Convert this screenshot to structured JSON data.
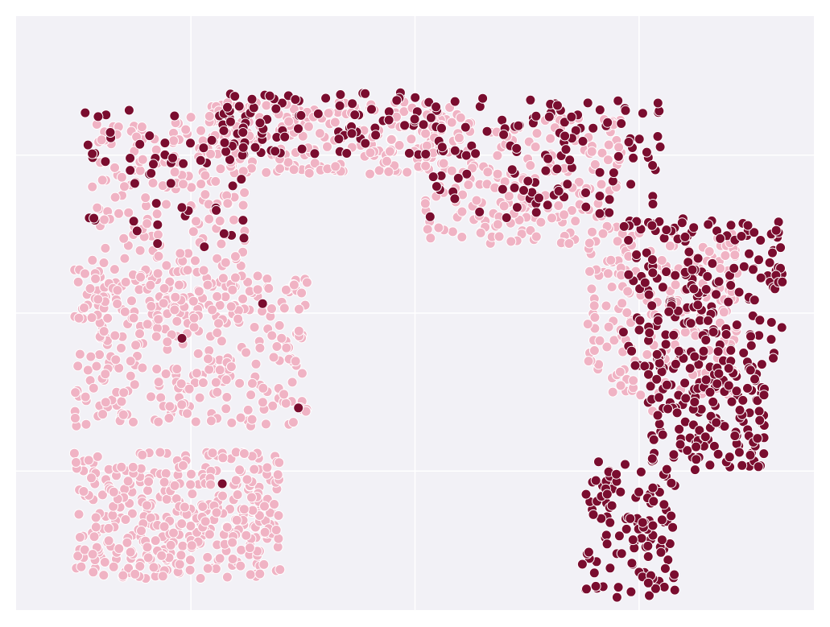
{
  "chart_data": {
    "type": "scatter",
    "title": "",
    "xlabel": "",
    "ylabel": "",
    "xlim": [
      -8.9,
      8.9
    ],
    "ylim": [
      -9.4,
      9.4
    ],
    "x_gridlines": [
      -5,
      0,
      5
    ],
    "y_gridlines": [
      -5,
      0,
      5
    ],
    "grid": true,
    "legend": "none",
    "colors": {
      "background": "#f2f1f6",
      "grid": "#ffffff",
      "light_points": "#f0b3c4",
      "dark_points": "#7a0d2f",
      "point_edge": "#ffffff"
    },
    "series": [
      {
        "color_key": "light_points",
        "clusters": [
          {
            "x": [
              -7.6,
              -3.0
            ],
            "y": [
              -8.4,
              -4.4
            ],
            "n": 380
          },
          {
            "x": [
              -7.6,
              -2.4
            ],
            "y": [
              -3.6,
              1.4
            ],
            "n": 320
          },
          {
            "x": [
              -7.2,
              -3.8
            ],
            "y": [
              -0.2,
              6.1
            ],
            "n": 230
          },
          {
            "x": [
              -4.6,
              0.8
            ],
            "y": [
              4.4,
              6.7
            ],
            "n": 210
          },
          {
            "x": [
              0.2,
              4.6
            ],
            "y": [
              2.2,
              6.3
            ],
            "n": 210
          },
          {
            "x": [
              3.8,
              7.2
            ],
            "y": [
              -2.6,
              2.6
            ],
            "n": 220
          }
        ],
        "scattered": [
          [
            -6.7,
            4.6
          ],
          [
            -5.0,
            6.2
          ],
          [
            -2.5,
            5.6
          ],
          [
            1.2,
            6.0
          ],
          [
            3.2,
            3.4
          ],
          [
            4.6,
            1.2
          ],
          [
            5.8,
            -1.0
          ],
          [
            5.3,
            -3.1
          ]
        ]
      },
      {
        "color_key": "dark_points",
        "clusters": [
          {
            "x": [
              -7.4,
              -3.6
            ],
            "y": [
              2.2,
              6.5
            ],
            "n": 60
          },
          {
            "x": [
              -4.3,
              0.5
            ],
            "y": [
              5.0,
              7.0
            ],
            "n": 90
          },
          {
            "x": [
              0.3,
              5.5
            ],
            "y": [
              3.0,
              6.8
            ],
            "n": 120
          },
          {
            "x": [
              4.6,
              8.2
            ],
            "y": [
              -1.8,
              3.0
            ],
            "n": 190
          },
          {
            "x": [
              5.2,
              7.8
            ],
            "y": [
              -5.0,
              -1.2
            ],
            "n": 160
          },
          {
            "x": [
              3.7,
              5.8
            ],
            "y": [
              -9.0,
              -4.6
            ],
            "n": 120
          }
        ],
        "scattered": [
          [
            -5.2,
            -0.8
          ],
          [
            -2.6,
            -3.0
          ],
          [
            -4.7,
            2.1
          ],
          [
            -3.4,
            0.3
          ],
          [
            -6.2,
            2.6
          ],
          [
            -4.3,
            -5.4
          ]
        ]
      }
    ]
  }
}
